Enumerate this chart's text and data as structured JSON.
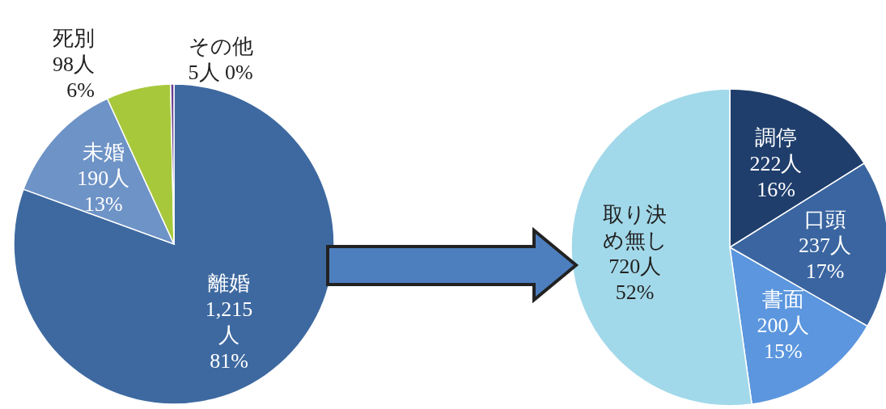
{
  "chart_data": [
    {
      "type": "pie",
      "categories": [
        "離婚",
        "未婚",
        "死別",
        "その他"
      ],
      "values": [
        1215,
        190,
        98,
        5
      ],
      "colors": [
        "#3e69a0",
        "#6e93c6",
        "#a8c83c",
        "#6b3f8f"
      ],
      "value_labels": [
        "1,215\n人\n81%",
        "190人\n13%",
        "98人\n6%",
        "5人 0%"
      ]
    },
    {
      "type": "pie",
      "categories": [
        "調停",
        "口頭",
        "書面",
        "取り決め無し"
      ],
      "values": [
        222,
        237,
        200,
        720
      ],
      "colors": [
        "#1f3e6c",
        "#3a65a0",
        "#5b96de",
        "#a2d9ea"
      ],
      "value_labels": [
        "222人\n16%",
        "237人\n17%",
        "200人\n15%",
        "720人\n52%"
      ]
    }
  ]
}
